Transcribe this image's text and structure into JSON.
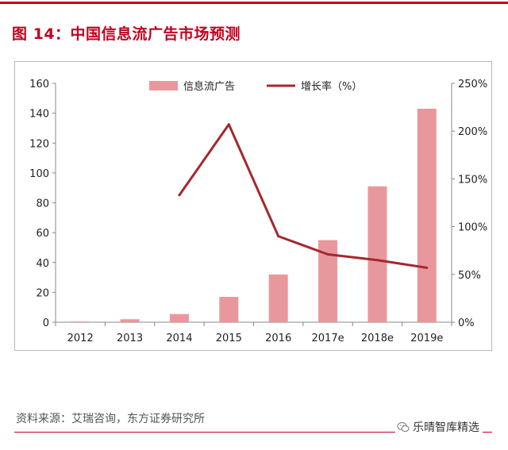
{
  "figure": {
    "title": "图 14：中国信息流广告市场预测",
    "source": "资料来源：艾瑞咨询，东方证券研究所",
    "watermark": "乐晴智库精选"
  },
  "colors": {
    "accent": "#c0001f",
    "bar": "#e8989c",
    "line": "#a5282d"
  },
  "chart_data": {
    "type": "bar",
    "categories": [
      "2012",
      "2013",
      "2014",
      "2015",
      "2016",
      "2017e",
      "2018e",
      "2019e"
    ],
    "series": [
      {
        "name": "信息流广告",
        "type": "bar",
        "axis": "left",
        "values": [
          0.5,
          2,
          5.5,
          17,
          32,
          55,
          91,
          143
        ]
      },
      {
        "name": "增长率（%）",
        "type": "line",
        "axis": "right",
        "values": [
          null,
          null,
          133,
          207,
          90,
          71,
          65,
          57
        ]
      }
    ],
    "ylim": [
      0,
      160
    ],
    "yticks": [
      "0",
      "20",
      "40",
      "60",
      "80",
      "100",
      "120",
      "140",
      "160"
    ],
    "y2lim": [
      0,
      250
    ],
    "y2ticks": [
      "0%",
      "50%",
      "100%",
      "150%",
      "200%",
      "250%"
    ],
    "legend": "top-center",
    "grid": false
  }
}
